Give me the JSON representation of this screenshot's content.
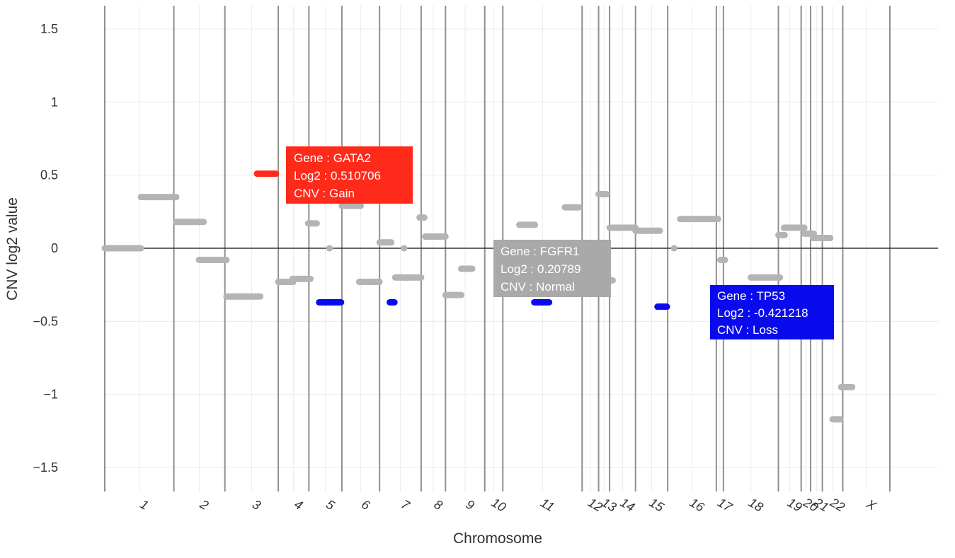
{
  "chart_data": {
    "type": "scatter",
    "title": "",
    "xlabel": "Chromosome",
    "ylabel": "CNV log2 value",
    "ylim": [
      -1.65,
      1.65
    ],
    "yticks": [
      1.5,
      1,
      0.5,
      0,
      -0.5,
      -1,
      -1.5
    ],
    "ytick_labels": [
      "1.5",
      "1",
      "0.5",
      "0",
      "−0.5",
      "−1",
      "−1.5"
    ],
    "x_unit": "relative genome position (0-1000)",
    "xlim": [
      0,
      1000
    ],
    "gridlines": true,
    "zero_line": true,
    "colors": {
      "normal": "#b4b4b4",
      "gain": "#ff2a1a",
      "loss": "#0a0aee",
      "boundary": "#8f8f8f",
      "grid": "#ebebeb",
      "zero": "#333333"
    },
    "chromosomes": [
      {
        "name": "1",
        "start": 0,
        "end": 88
      },
      {
        "name": "2",
        "start": 88,
        "end": 153
      },
      {
        "name": "3",
        "start": 153,
        "end": 221
      },
      {
        "name": "4",
        "start": 221,
        "end": 260
      },
      {
        "name": "5",
        "start": 260,
        "end": 302
      },
      {
        "name": "6",
        "start": 302,
        "end": 350
      },
      {
        "name": "7",
        "start": 350,
        "end": 403
      },
      {
        "name": "8",
        "start": 403,
        "end": 434
      },
      {
        "name": "9",
        "start": 434,
        "end": 484
      },
      {
        "name": "10",
        "start": 484,
        "end": 507
      },
      {
        "name": "11",
        "start": 507,
        "end": 608
      },
      {
        "name": "12",
        "start": 608,
        "end": 629
      },
      {
        "name": "13",
        "start": 629,
        "end": 643
      },
      {
        "name": "14",
        "start": 643,
        "end": 676
      },
      {
        "name": "15",
        "start": 676,
        "end": 717
      },
      {
        "name": "16",
        "start": 717,
        "end": 779
      },
      {
        "name": "17",
        "start": 779,
        "end": 788
      },
      {
        "name": "18",
        "start": 788,
        "end": 858
      },
      {
        "name": "19",
        "start": 858,
        "end": 887
      },
      {
        "name": "20",
        "start": 887,
        "end": 899
      },
      {
        "name": "21",
        "start": 899,
        "end": 914
      },
      {
        "name": "22",
        "start": 914,
        "end": 940
      },
      {
        "name": "X",
        "start": 940,
        "end": 1000
      }
    ],
    "segments": [
      {
        "x0": 0,
        "x1": 46,
        "y": 0.0,
        "cnv": "Normal"
      },
      {
        "x0": 46,
        "x1": 91,
        "y": 0.35,
        "cnv": "Normal"
      },
      {
        "x0": 91,
        "x1": 126,
        "y": 0.18,
        "cnv": "Normal"
      },
      {
        "x0": 120,
        "x1": 155,
        "y": -0.08,
        "cnv": "Normal"
      },
      {
        "x0": 155,
        "x1": 198,
        "y": -0.33,
        "cnv": "Normal"
      },
      {
        "x0": 221,
        "x1": 240,
        "y": -0.23,
        "cnv": "Normal"
      },
      {
        "x0": 239,
        "x1": 262,
        "y": -0.21,
        "cnv": "Normal"
      },
      {
        "x0": 259,
        "x1": 270,
        "y": 0.17,
        "cnv": "Normal"
      },
      {
        "x0": 286,
        "x1": 286,
        "y": 0.0,
        "cnv": "Normal"
      },
      {
        "x0": 302,
        "x1": 326,
        "y": 0.29,
        "cnv": "Normal"
      },
      {
        "x0": 324,
        "x1": 350,
        "y": -0.23,
        "cnv": "Normal"
      },
      {
        "x0": 350,
        "x1": 365,
        "y": 0.04,
        "cnv": "Normal"
      },
      {
        "x0": 370,
        "x1": 385,
        "y": -0.2,
        "cnv": "Normal"
      },
      {
        "x0": 383,
        "x1": 403,
        "y": -0.2,
        "cnv": "Normal"
      },
      {
        "x0": 381,
        "x1": 381,
        "y": 0.0,
        "cnv": "Normal"
      },
      {
        "x0": 401,
        "x1": 407,
        "y": 0.21,
        "cnv": "Normal"
      },
      {
        "x0": 408,
        "x1": 434,
        "y": 0.08,
        "cnv": "Normal"
      },
      {
        "x0": 434,
        "x1": 454,
        "y": -0.32,
        "cnv": "Normal"
      },
      {
        "x0": 454,
        "x1": 468,
        "y": -0.14,
        "cnv": "Normal"
      },
      {
        "x0": 528,
        "x1": 548,
        "y": 0.16,
        "cnv": "Normal"
      },
      {
        "x0": 618,
        "x1": 633,
        "y": -0.09,
        "cnv": "Normal"
      },
      {
        "x0": 608,
        "x1": 611,
        "y": -0.21,
        "cnv": "Normal"
      },
      {
        "x0": 586,
        "x1": 604,
        "y": 0.28,
        "cnv": "Normal"
      },
      {
        "x0": 629,
        "x1": 639,
        "y": 0.37,
        "cnv": "Normal"
      },
      {
        "x0": 641,
        "x1": 647,
        "y": -0.22,
        "cnv": "Normal"
      },
      {
        "x0": 643,
        "x1": 676,
        "y": 0.14,
        "cnv": "Normal"
      },
      {
        "x0": 676,
        "x1": 707,
        "y": 0.12,
        "cnv": "Normal"
      },
      {
        "x0": 725,
        "x1": 725,
        "y": 0.0,
        "cnv": "Normal"
      },
      {
        "x0": 733,
        "x1": 781,
        "y": 0.2,
        "cnv": "Normal"
      },
      {
        "x0": 784,
        "x1": 790,
        "y": -0.08,
        "cnv": "Normal"
      },
      {
        "x0": 823,
        "x1": 860,
        "y": -0.2,
        "cnv": "Normal"
      },
      {
        "x0": 858,
        "x1": 866,
        "y": 0.09,
        "cnv": "Normal"
      },
      {
        "x0": 865,
        "x1": 891,
        "y": 0.14,
        "cnv": "Normal"
      },
      {
        "x0": 891,
        "x1": 903,
        "y": 0.1,
        "cnv": "Normal"
      },
      {
        "x0": 902,
        "x1": 924,
        "y": 0.07,
        "cnv": "Normal"
      },
      {
        "x0": 927,
        "x1": 937,
        "y": -1.17,
        "cnv": "Normal"
      },
      {
        "x0": 938,
        "x1": 952,
        "y": -0.95,
        "cnv": "Normal"
      },
      {
        "x0": 273,
        "x1": 301,
        "y": -0.37,
        "cnv": "Loss"
      },
      {
        "x0": 363,
        "x1": 369,
        "y": -0.37,
        "cnv": "Loss"
      },
      {
        "x0": 547,
        "x1": 566,
        "y": -0.37,
        "cnv": "Loss"
      },
      {
        "x0": 704,
        "x1": 716,
        "y": -0.4,
        "cnv": "Loss"
      },
      {
        "x0": 194,
        "x1": 218,
        "y": 0.51,
        "cnv": "Gain"
      }
    ],
    "annotations": [
      {
        "gene": "GATA2",
        "log2": "0.510706",
        "cnv": "Gain",
        "gene_label": "Gene :  GATA2",
        "log2_label": "Log2 :  0.510706",
        "cnv_label": "CNV :  Gain",
        "color": "#ff2a1a"
      },
      {
        "gene": "FGFR1",
        "log2": "0.20789",
        "cnv": "Normal",
        "gene_label": "Gene :  FGFR1",
        "log2_label": "Log2 :  0.20789",
        "cnv_label": "CNV :  Normal",
        "color": "#a9a9a9"
      },
      {
        "gene": "TP53",
        "log2": "-0.421218",
        "cnv": "Loss",
        "gene_label": "Gene :  TP53",
        "log2_label": "Log2 :  -0.421218",
        "cnv_label": "CNV :  Loss",
        "color": "#0a0aee"
      }
    ]
  }
}
